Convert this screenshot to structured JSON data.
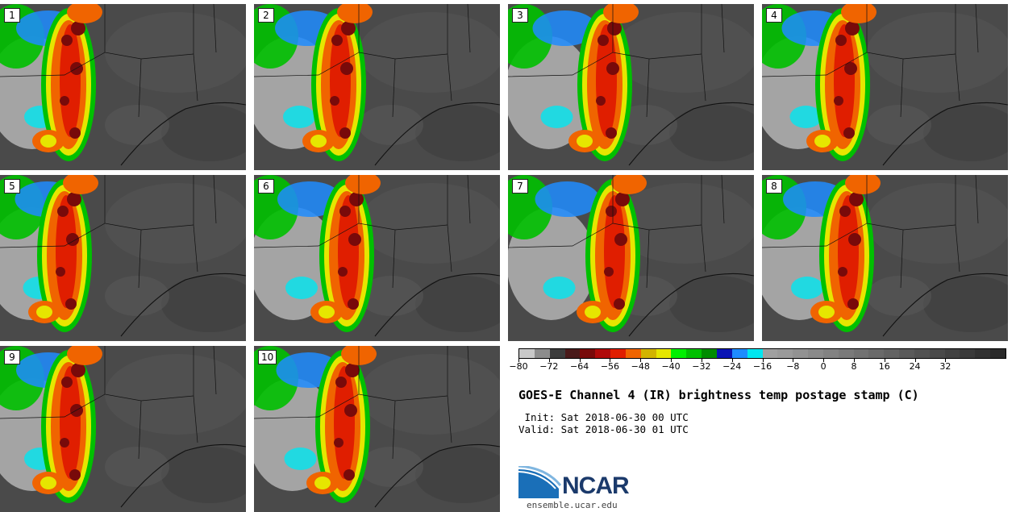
{
  "panels": [
    {
      "label": "1"
    },
    {
      "label": "2"
    },
    {
      "label": "3"
    },
    {
      "label": "4"
    },
    {
      "label": "5"
    },
    {
      "label": "6"
    },
    {
      "label": "7"
    },
    {
      "label": "8"
    },
    {
      "label": "9"
    },
    {
      "label": "10"
    }
  ],
  "colorbar": {
    "colors": [
      "#c8c8c8",
      "#8c8c8c",
      "#3c3c3c",
      "#4a1a1a",
      "#780a0a",
      "#b00a0a",
      "#e01e00",
      "#f06400",
      "#d2b400",
      "#e6e600",
      "#00f000",
      "#00c000",
      "#008c00",
      "#0a14b4",
      "#1e8cff",
      "#00e6f0",
      "#a0a0a0",
      "#9a9a9a",
      "#929292",
      "#8a8a8a",
      "#828282",
      "#7a7a7a",
      "#727272",
      "#6a6a6a",
      "#626262",
      "#5a5a5a",
      "#525252",
      "#4a4a4a",
      "#424242",
      "#3a3a3a",
      "#323232",
      "#2a2a2a"
    ],
    "ticks": [
      "−80",
      "−72",
      "−64",
      "−56",
      "−48",
      "−40",
      "−32",
      "−24",
      "−16",
      "−8",
      "0",
      "8",
      "16",
      "24",
      "32"
    ]
  },
  "title": "GOES-E Channel 4 (IR) brightness temp postage stamp (C)",
  "init_line": " Init: Sat 2018-06-30 00 UTC",
  "valid_line": "Valid: Sat 2018-06-30 01 UTC",
  "logo_text": "NCAR",
  "site": "ensemble.ucar.edu",
  "colors": {
    "dark_bg": "#4a4a4a",
    "cold_core": "#780a0a",
    "red": "#e01e00",
    "orange": "#f06400",
    "yellow": "#e6e600",
    "green": "#00c000",
    "blue": "#1e8cff",
    "cyan": "#00e6f0",
    "light_gray": "#b4b4b4"
  }
}
